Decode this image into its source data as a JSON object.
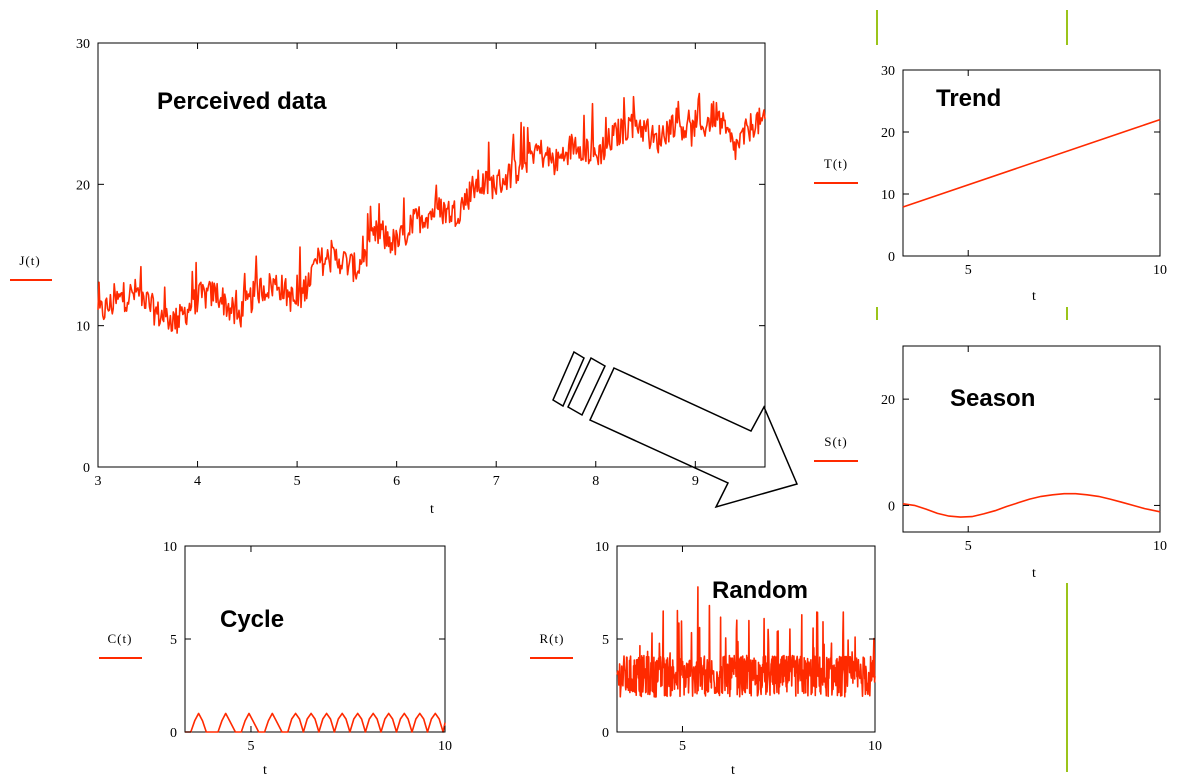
{
  "series_color": "#ff2a00",
  "divider_color": "#9bc41a",
  "chart_data": [
    {
      "id": "main",
      "type": "line",
      "title": "Perceived data",
      "xlabel": "t",
      "ylabel": "J(t)",
      "xlim": [
        3,
        9.7
      ],
      "ylim": [
        0,
        30
      ],
      "xticks": [
        3,
        4,
        5,
        6,
        7,
        8,
        9
      ],
      "yticks": [
        0,
        10,
        20,
        30
      ],
      "series": [
        {
          "x": [
            3,
            3.2,
            3.4,
            3.6,
            3.8,
            4.0,
            4.2,
            4.4,
            4.6,
            4.8,
            5.0,
            5.2,
            5.4,
            5.6,
            5.8,
            6.0,
            6.2,
            6.4,
            6.6,
            6.8,
            7.0,
            7.2,
            7.4,
            7.6,
            7.8,
            8.0,
            8.2,
            8.4,
            8.6,
            8.8,
            9.0,
            9.2,
            9.4,
            9.6,
            9.7
          ],
          "y": [
            10.8,
            11.8,
            12.4,
            10.8,
            10.3,
            12.0,
            12.3,
            10.5,
            12.5,
            13.0,
            11.5,
            14.5,
            14.8,
            14.0,
            16.5,
            15.8,
            17.5,
            18.2,
            18.0,
            20.0,
            20.0,
            21.0,
            22.5,
            21.5,
            23.0,
            22.0,
            23.5,
            24.5,
            23.0,
            24.5,
            23.5,
            25.0,
            22.5,
            24.5,
            24.2
          ],
          "noise": 1.3
        }
      ]
    },
    {
      "id": "trend",
      "type": "line",
      "title": "Trend",
      "xlabel": "t",
      "ylabel": "T(t)",
      "xlim": [
        3.3,
        10
      ],
      "ylim": [
        0,
        30
      ],
      "xticks": [
        5,
        10
      ],
      "yticks": [
        0,
        10,
        20,
        30
      ],
      "series": [
        {
          "x": [
            3.3,
            10
          ],
          "y": [
            7.9,
            22.0
          ]
        }
      ]
    },
    {
      "id": "season",
      "type": "line",
      "title": "Season",
      "xlabel": "t",
      "ylabel": "S(t)",
      "xlim": [
        3.3,
        10
      ],
      "ylim": [
        -5,
        30
      ],
      "xticks": [
        5,
        10
      ],
      "yticks": [
        0,
        20
      ],
      "series": [
        {
          "x": [
            3.3,
            3.6,
            3.9,
            4.2,
            4.5,
            4.8,
            5.1,
            5.4,
            5.7,
            6.0,
            6.3,
            6.6,
            6.9,
            7.2,
            7.5,
            7.8,
            8.1,
            8.4,
            8.7,
            9.0,
            9.3,
            9.6,
            10.0
          ],
          "y": [
            0.3,
            0.0,
            -0.7,
            -1.5,
            -2.0,
            -2.2,
            -2.1,
            -1.6,
            -1.0,
            -0.2,
            0.5,
            1.2,
            1.7,
            2.0,
            2.2,
            2.2,
            2.0,
            1.7,
            1.2,
            0.6,
            0.0,
            -0.6,
            -1.2
          ]
        }
      ]
    },
    {
      "id": "cycle",
      "type": "line",
      "title": "Cycle",
      "xlabel": "t",
      "ylabel": "C(t)",
      "xlim": [
        3.3,
        10
      ],
      "ylim": [
        0,
        10
      ],
      "xticks": [
        5,
        10
      ],
      "yticks": [
        0,
        5,
        10
      ],
      "series": [
        {
          "x": [
            3.3,
            3.45,
            3.55,
            3.65,
            3.75,
            3.85,
            4.0,
            4.15,
            4.25,
            4.35,
            4.45,
            4.6,
            4.75,
            4.85,
            4.95,
            5.05,
            5.2,
            5.35,
            5.45,
            5.55,
            5.65,
            5.8,
            5.95,
            6.05,
            6.15,
            6.25,
            6.35,
            6.45,
            6.55,
            6.65,
            6.75,
            6.85,
            6.95,
            7.05,
            7.15,
            7.25,
            7.35,
            7.45,
            7.55,
            7.65,
            7.75,
            7.85,
            7.95,
            8.05,
            8.15,
            8.25,
            8.35,
            8.45,
            8.55,
            8.65,
            8.75,
            8.85,
            8.95,
            9.05,
            9.15,
            9.25,
            9.35,
            9.45,
            9.55,
            9.65,
            9.75,
            9.85,
            9.95,
            10.0
          ],
          "y": [
            0,
            0,
            0.6,
            1.0,
            0.6,
            0,
            0,
            0,
            0.6,
            1.0,
            0.6,
            0,
            0,
            0.6,
            1.0,
            0.6,
            0,
            0,
            0.6,
            1.0,
            0.6,
            0,
            0,
            0.7,
            1.0,
            0.7,
            0,
            0.7,
            1.0,
            0.7,
            0,
            0.7,
            1.0,
            0.7,
            0,
            0.7,
            1.0,
            0.7,
            0,
            0.7,
            1.0,
            0.7,
            0,
            0.7,
            1.0,
            0.7,
            0,
            0.7,
            1.0,
            0.7,
            0,
            0.7,
            1.0,
            0.7,
            0,
            0.7,
            1.0,
            0.7,
            0,
            0.7,
            1.0,
            0.7,
            0,
            0.5
          ]
        }
      ]
    },
    {
      "id": "random",
      "type": "line",
      "title": "Random",
      "xlabel": "t",
      "ylabel": "R(t)",
      "xlim": [
        3.3,
        10
      ],
      "ylim": [
        0,
        10
      ],
      "xticks": [
        5,
        10
      ],
      "yticks": [
        0,
        5,
        10
      ],
      "series": [
        {
          "x": [
            3.3,
            10
          ],
          "y": [
            3.0,
            3.0
          ],
          "noise": 1.4,
          "spikes": [
            [
              5.4,
              7.8
            ],
            [
              5.7,
              6.8
            ],
            [
              4.5,
              6.5
            ],
            [
              8.1,
              6.3
            ]
          ]
        }
      ]
    }
  ]
}
